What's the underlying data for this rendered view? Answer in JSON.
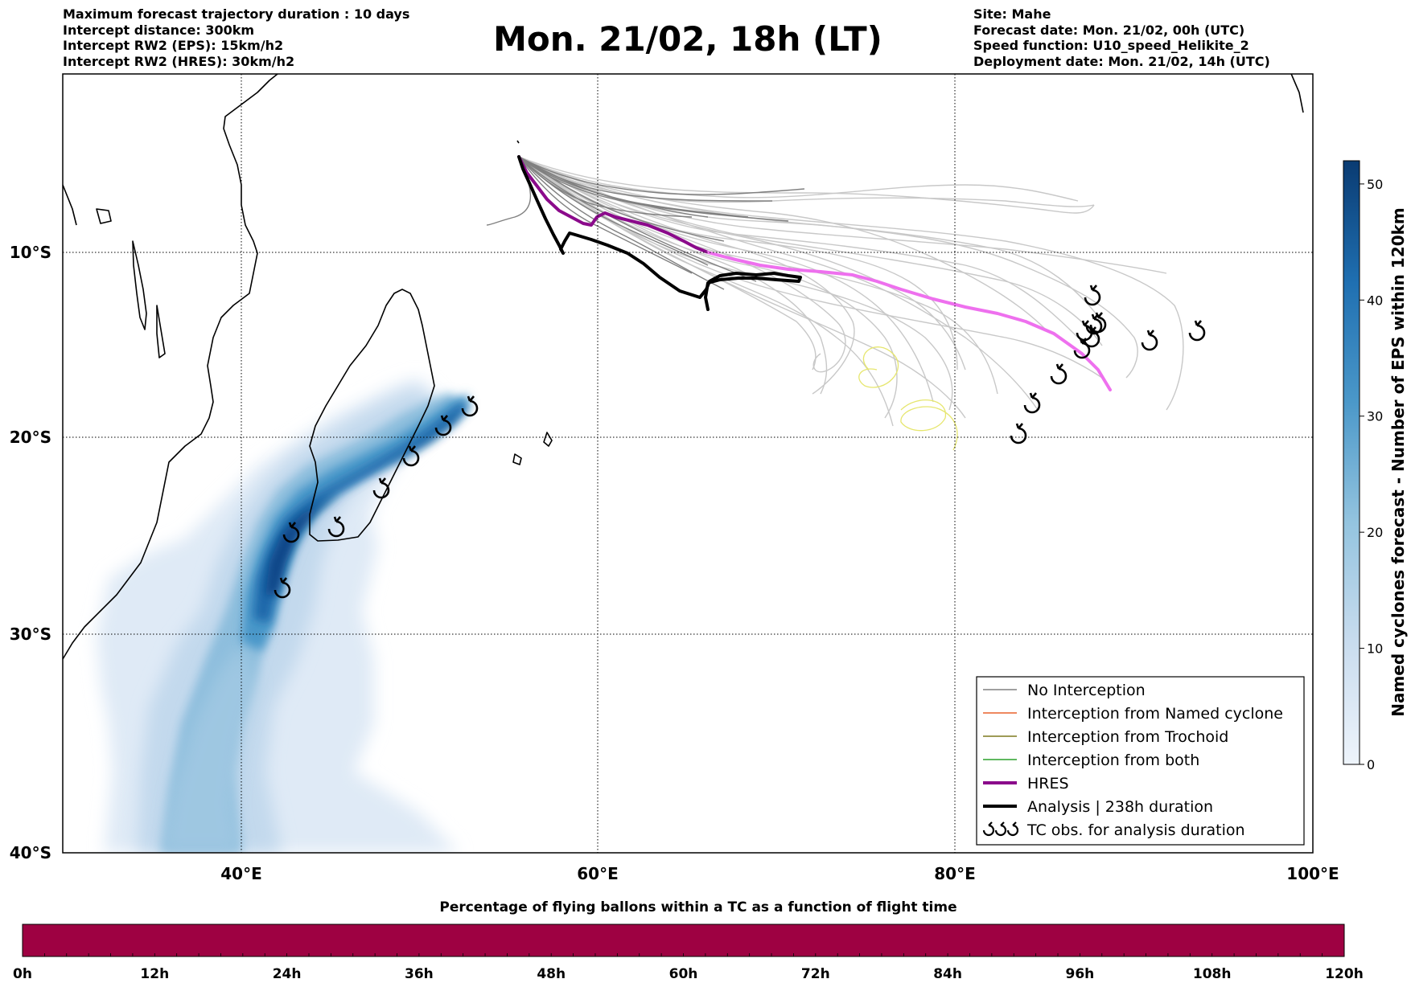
{
  "header_left": [
    "Maximum forecast trajectory duration : 10 days",
    "Intercept distance: 300km",
    "Intercept RW2 (EPS):  15km/h2",
    "Intercept RW2 (HRES): 30km/h2"
  ],
  "title": "Mon. 21/02, 18h (LT)",
  "header_right": [
    "Site: Mahe",
    "Forecast date: Mon. 21/02, 00h (UTC)",
    "Speed function: U10_speed_Helikite_2",
    "Deployment date: Mon. 21/02, 14h (UTC)"
  ],
  "map": {
    "lat_labels": [
      "10°S",
      "20°S",
      "30°S",
      "40°S"
    ],
    "lon_labels": [
      "40°E",
      "60°E",
      "80°E",
      "100°E"
    ],
    "grid": "dotted"
  },
  "legend": {
    "items": [
      {
        "label": "No Interception",
        "color": "#808080"
      },
      {
        "label": "Interception from Named cyclone",
        "color": "#e8602c"
      },
      {
        "label": "Interception from Trochoid",
        "color": "#7f7a1e"
      },
      {
        "label": "Interception from both",
        "color": "#2ca02c"
      },
      {
        "label": "HRES",
        "color": "#8b0a8b"
      },
      {
        "label": "Analysis | 238h duration",
        "color": "#000000"
      },
      {
        "label": "TC obs. for analysis duration",
        "symbol": "cyclone-icon"
      }
    ]
  },
  "colorbar": {
    "label": "Named cyclones forecast - Number of EPS within 120km",
    "ticks": [
      "0",
      "10",
      "20",
      "30",
      "40",
      "50"
    ],
    "range": [
      0,
      52
    ],
    "colormap": "Blues"
  },
  "bottom_bar": {
    "title": "Percentage of flying ballons within a TC as a function of flight time",
    "ticks": [
      "0h",
      "12h",
      "24h",
      "36h",
      "48h",
      "60h",
      "72h",
      "84h",
      "96h",
      "108h",
      "120h"
    ],
    "fill_color": "#9e0142"
  },
  "colors": {
    "eps_tracks": "#c8c8c8",
    "eps_dark_tracks": "#808080",
    "hres_early": "#8b0a8b",
    "hres_late": "#ee70ee",
    "analysis": "#000000",
    "trochoid": "#e6e66e"
  }
}
